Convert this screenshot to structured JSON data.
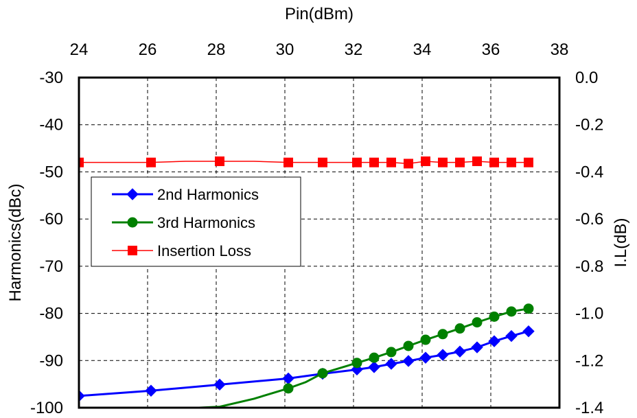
{
  "chart_data": {
    "type": "line",
    "xlabel": "Pin(dBm)",
    "ylabel": "Harmonics(dBc)",
    "y2label": "I.L(dB)",
    "xlim": [
      24,
      38
    ],
    "ylim": [
      -100,
      -30
    ],
    "y2lim": [
      -1.4,
      0.0
    ],
    "xticks": [
      "24",
      "26",
      "28",
      "30",
      "32",
      "34",
      "36",
      "38"
    ],
    "yticks": [
      "-30",
      "-40",
      "-50",
      "-60",
      "-70",
      "-80",
      "-90",
      "-100"
    ],
    "y2ticks": [
      "0.0",
      "-0.2",
      "-0.4",
      "-0.6",
      "-0.8",
      "-1.0",
      "-1.2",
      "-1.4"
    ],
    "grid": true,
    "legend_position": "center-left",
    "series": [
      {
        "name": "2nd Harmonics",
        "axis": "left",
        "color": "#0000FF",
        "marker": "diamond",
        "x": [
          24.0,
          26.1,
          28.1,
          30.1,
          31.1,
          32.1,
          32.6,
          33.1,
          33.6,
          34.1,
          34.6,
          35.1,
          35.6,
          36.1,
          36.6,
          37.1
        ],
        "y": [
          -97.5,
          -96.4,
          -95.1,
          -93.8,
          -92.8,
          -91.9,
          -91.4,
          -90.7,
          -90.1,
          -89.4,
          -88.8,
          -88.1,
          -87.2,
          -85.9,
          -84.8,
          -83.8
        ],
        "marker_x": [
          24.0,
          26.1,
          28.1,
          30.1,
          31.1,
          32.1,
          32.6,
          33.1,
          33.6,
          34.1,
          34.6,
          35.1,
          35.6,
          36.1,
          36.6,
          37.1
        ]
      },
      {
        "name": "3rd Harmonics",
        "axis": "left",
        "color": "#008000",
        "marker": "circle",
        "x": [
          27.5,
          28.1,
          29.1,
          30.1,
          30.6,
          31.1,
          32.1,
          32.6,
          33.1,
          33.6,
          34.1,
          34.6,
          35.1,
          35.6,
          36.1,
          36.6,
          37.1
        ],
        "y": [
          -100.0,
          -99.8,
          -98.1,
          -95.9,
          -94.6,
          -92.7,
          -90.5,
          -89.4,
          -88.2,
          -86.9,
          -85.6,
          -84.4,
          -83.2,
          -81.9,
          -80.7,
          -79.6,
          -79.0
        ],
        "marker_x": [
          30.1,
          31.1,
          32.1,
          32.6,
          33.1,
          33.6,
          34.1,
          34.6,
          35.1,
          35.6,
          36.1,
          36.6,
          37.1
        ]
      },
      {
        "name": "Insertion Loss",
        "axis": "right",
        "color": "#FF0000",
        "marker": "square",
        "x": [
          24.0,
          26.1,
          27.1,
          28.1,
          29.1,
          30.1,
          31.1,
          32.1,
          32.6,
          33.1,
          33.6,
          34.1,
          34.6,
          35.1,
          35.6,
          36.1,
          36.6,
          37.1
        ],
        "y": [
          -0.36,
          -0.36,
          -0.355,
          -0.355,
          -0.355,
          -0.36,
          -0.36,
          -0.36,
          -0.36,
          -0.36,
          -0.365,
          -0.355,
          -0.36,
          -0.36,
          -0.355,
          -0.36,
          -0.36,
          -0.36
        ],
        "marker_x": [
          24.0,
          26.1,
          28.1,
          30.1,
          31.1,
          32.1,
          32.6,
          33.1,
          33.6,
          34.1,
          34.6,
          35.1,
          35.6,
          36.1,
          36.6,
          37.1
        ]
      }
    ]
  }
}
